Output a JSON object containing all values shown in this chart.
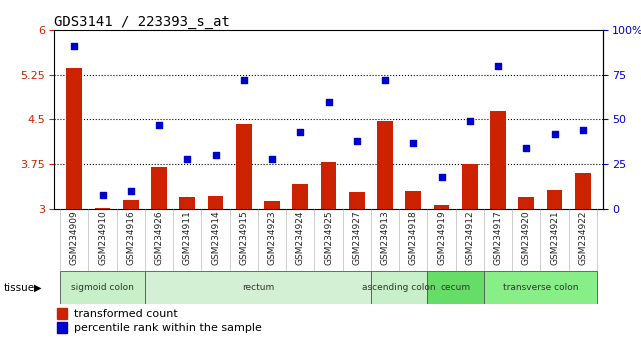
{
  "title": "GDS3141 / 223393_s_at",
  "samples": [
    "GSM234909",
    "GSM234910",
    "GSM234916",
    "GSM234926",
    "GSM234911",
    "GSM234914",
    "GSM234915",
    "GSM234923",
    "GSM234924",
    "GSM234925",
    "GSM234927",
    "GSM234913",
    "GSM234918",
    "GSM234919",
    "GSM234912",
    "GSM234917",
    "GSM234920",
    "GSM234921",
    "GSM234922"
  ],
  "transformed_count": [
    5.37,
    3.02,
    3.15,
    3.7,
    3.2,
    3.22,
    4.43,
    3.13,
    3.42,
    3.78,
    3.28,
    4.47,
    3.3,
    3.06,
    3.75,
    4.65,
    3.2,
    3.32,
    3.6
  ],
  "percentile_rank": [
    91,
    8,
    10,
    47,
    28,
    30,
    72,
    28,
    43,
    60,
    38,
    72,
    37,
    18,
    49,
    80,
    34,
    42,
    44
  ],
  "ylim_left": [
    3.0,
    6.0
  ],
  "ylim_right": [
    0,
    100
  ],
  "yticks_left": [
    3.0,
    3.75,
    4.5,
    5.25,
    6.0
  ],
  "yticks_right": [
    0,
    25,
    50,
    75,
    100
  ],
  "ytick_labels_left": [
    "3",
    "3.75",
    "4.5",
    "5.25",
    "6"
  ],
  "ytick_labels_right": [
    "0",
    "25",
    "50",
    "75",
    "100%"
  ],
  "hlines": [
    3.75,
    4.5,
    5.25
  ],
  "tissue_groups": [
    {
      "label": "sigmoid colon",
      "start": 0,
      "end": 3,
      "color": "#c8f0c8"
    },
    {
      "label": "rectum",
      "start": 3,
      "end": 11,
      "color": "#d4f0d4"
    },
    {
      "label": "ascending colon",
      "start": 11,
      "end": 13,
      "color": "#c8f0c8"
    },
    {
      "label": "cecum",
      "start": 13,
      "end": 15,
      "color": "#66dd66"
    },
    {
      "label": "transverse colon",
      "start": 15,
      "end": 19,
      "color": "#88ee88"
    }
  ],
  "bar_color": "#cc2200",
  "scatter_color": "#0000cc",
  "bar_width": 0.55,
  "bg_color": "#ffffff",
  "plot_bg": "#ffffff",
  "tick_label_color_left": "#cc2200",
  "tick_label_color_right": "#0000cc",
  "tissue_label": "tissue",
  "xticklabel_bg": "#d8d8d8"
}
